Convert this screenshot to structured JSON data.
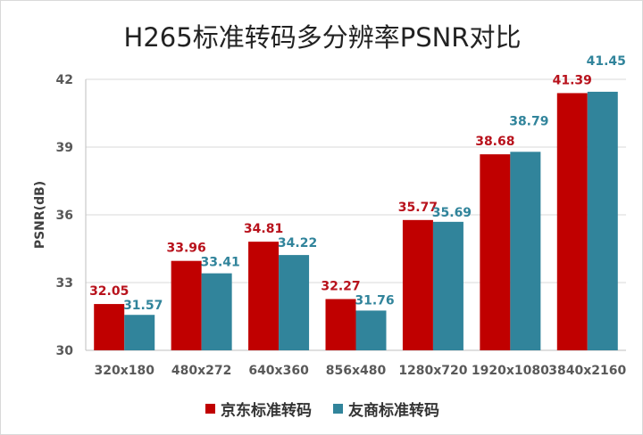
{
  "chart_data": {
    "type": "bar",
    "title": "H265标准转码多分辨率PSNR对比",
    "ylabel": "PSNR(dB)",
    "xlabel": "",
    "ylim": [
      30,
      42
    ],
    "yticks": [
      30,
      33,
      36,
      39,
      42
    ],
    "grid": true,
    "legend_position": "bottom",
    "categories": [
      "320x180",
      "480x272",
      "640x360",
      "856x480",
      "1280x720",
      "1920x1080",
      "3840x2160"
    ],
    "series": [
      {
        "name": "京东标准转码",
        "color": "#c00000",
        "label_color": "#b8121c",
        "values": [
          32.05,
          33.96,
          34.81,
          32.27,
          35.77,
          38.68,
          41.39
        ]
      },
      {
        "name": "友商标准转码",
        "color": "#31849b",
        "label_color": "#31849b",
        "values": [
          31.57,
          33.41,
          34.22,
          31.76,
          35.69,
          38.79,
          41.45
        ]
      }
    ]
  }
}
